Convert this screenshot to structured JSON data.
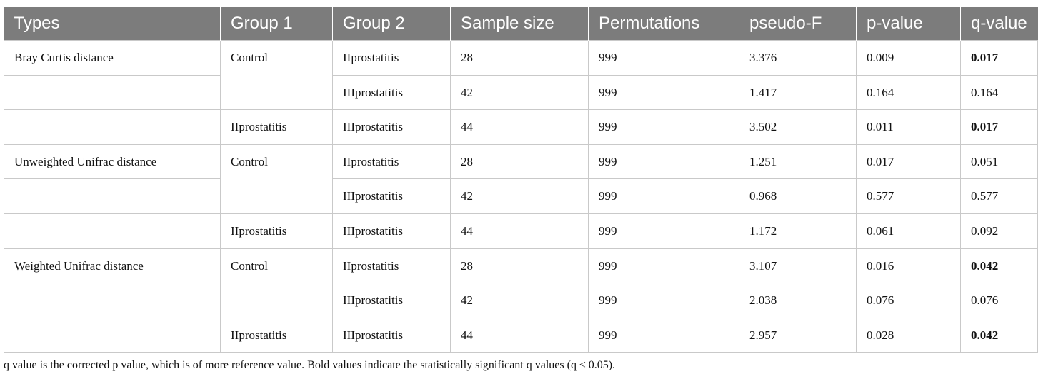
{
  "table": {
    "headers": [
      "Types",
      "Group 1",
      "Group 2",
      "Sample size",
      "Permutations",
      "pseudo-F",
      "p-value",
      "q-value"
    ],
    "sections": [
      {
        "type": "Bray Curtis distance",
        "rows": [
          {
            "group1": "Control",
            "group2": "IIprostatitis",
            "sample_size": "28",
            "permutations": "999",
            "pseudo_f": "3.376",
            "p_value": "0.009",
            "q_value": "0.017",
            "q_bold": true
          },
          {
            "group1": "",
            "group2": "IIIprostatitis",
            "sample_size": "42",
            "permutations": "999",
            "pseudo_f": "1.417",
            "p_value": "0.164",
            "q_value": "0.164",
            "q_bold": false
          },
          {
            "group1": "IIprostatitis",
            "group2": "IIIprostatitis",
            "sample_size": "44",
            "permutations": "999",
            "pseudo_f": "3.502",
            "p_value": "0.011",
            "q_value": "0.017",
            "q_bold": true
          }
        ]
      },
      {
        "type": "Unweighted Unifrac distance",
        "rows": [
          {
            "group1": "Control",
            "group2": "IIprostatitis",
            "sample_size": "28",
            "permutations": "999",
            "pseudo_f": "1.251",
            "p_value": "0.017",
            "q_value": "0.051",
            "q_bold": false
          },
          {
            "group1": "",
            "group2": "IIIprostatitis",
            "sample_size": "42",
            "permutations": "999",
            "pseudo_f": "0.968",
            "p_value": "0.577",
            "q_value": "0.577",
            "q_bold": false
          },
          {
            "group1": "IIprostatitis",
            "group2": "IIIprostatitis",
            "sample_size": "44",
            "permutations": "999",
            "pseudo_f": "1.172",
            "p_value": "0.061",
            "q_value": "0.092",
            "q_bold": false
          }
        ]
      },
      {
        "type": "Weighted Unifrac distance",
        "rows": [
          {
            "group1": "Control",
            "group2": "IIprostatitis",
            "sample_size": "28",
            "permutations": "999",
            "pseudo_f": "3.107",
            "p_value": "0.016",
            "q_value": "0.042",
            "q_bold": true
          },
          {
            "group1": "",
            "group2": "IIIprostatitis",
            "sample_size": "42",
            "permutations": "999",
            "pseudo_f": "2.038",
            "p_value": "0.076",
            "q_value": "0.076",
            "q_bold": false
          },
          {
            "group1": "IIprostatitis",
            "group2": "IIIprostatitis",
            "sample_size": "44",
            "permutations": "999",
            "pseudo_f": "2.957",
            "p_value": "0.028",
            "q_value": "0.042",
            "q_bold": true
          }
        ]
      }
    ]
  },
  "footnote": "q value is the corrected p value, which is of more reference value. Bold values indicate the statistically significant q values (q ≤ 0.05)."
}
